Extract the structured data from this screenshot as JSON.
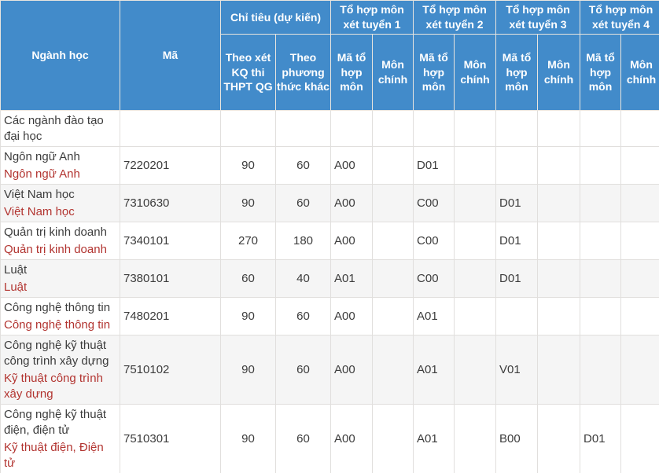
{
  "colors": {
    "header_bg": "#428bca",
    "header_text": "#ffffff",
    "link": "#b23430",
    "text": "#3c3c3c",
    "stripe": "#f5f5f5"
  },
  "table": {
    "header": {
      "nganh_hoc": "Ngành học",
      "ma": "Mã",
      "chi_tieu": "Chỉ tiêu (dự kiến)",
      "chi_tieu_sub": [
        "Theo xét KQ thi THPT QG",
        "Theo phương thức khác"
      ],
      "to_hop_groups": [
        "Tổ hợp môn xét tuyển 1",
        "Tổ hợp môn xét tuyển 2",
        "Tổ hợp môn xét tuyển 3",
        "Tổ hợp môn xét tuyển 4"
      ],
      "to_hop_sub": [
        "Mã tổ hợp môn",
        "Môn chính"
      ]
    },
    "rows": [
      {
        "name": "Các ngành đào tạo đại học",
        "link": "",
        "code": "",
        "quota_thptqg": "",
        "quota_khac": "",
        "combos": [
          "",
          "",
          "",
          "",
          "",
          "",
          "",
          ""
        ]
      },
      {
        "name": "Ngôn ngữ Anh",
        "link": "Ngôn ngữ Anh",
        "code": "7220201",
        "quota_thptqg": "90",
        "quota_khac": "60",
        "combos": [
          "A00",
          "",
          "D01",
          "",
          "",
          "",
          "",
          ""
        ]
      },
      {
        "name": "Việt Nam học",
        "link": "Việt Nam học",
        "code": "7310630",
        "quota_thptqg": "90",
        "quota_khac": "60",
        "combos": [
          "A00",
          "",
          "C00",
          "",
          "D01",
          "",
          "",
          ""
        ]
      },
      {
        "name": "Quản trị kinh doanh",
        "link": "Quản trị kinh doanh",
        "code": "7340101",
        "quota_thptqg": "270",
        "quota_khac": "180",
        "combos": [
          "A00",
          "",
          "C00",
          "",
          "D01",
          "",
          "",
          ""
        ]
      },
      {
        "name": "Luật",
        "link": "Luật",
        "code": "7380101",
        "quota_thptqg": "60",
        "quota_khac": "40",
        "combos": [
          "A01",
          "",
          "C00",
          "",
          "D01",
          "",
          "",
          ""
        ]
      },
      {
        "name": "Công nghệ thông tin",
        "link": "Công nghệ thông tin",
        "code": "7480201",
        "quota_thptqg": "90",
        "quota_khac": "60",
        "combos": [
          "A00",
          "",
          "A01",
          "",
          "",
          "",
          "",
          ""
        ]
      },
      {
        "name": "Công nghệ kỹ thuật công trình xây dựng",
        "link": "Kỹ thuật công trình xây dựng",
        "code": "7510102",
        "quota_thptqg": "90",
        "quota_khac": "60",
        "combos": [
          "A00",
          "",
          "A01",
          "",
          "V01",
          "",
          "",
          ""
        ]
      },
      {
        "name": "Công nghệ kỹ thuật điện, điện tử",
        "link": "Kỹ thuật điện, Điện tử",
        "code": "7510301",
        "quota_thptqg": "90",
        "quota_khac": "60",
        "combos": [
          "A00",
          "",
          "A01",
          "",
          "B00",
          "",
          "D01",
          ""
        ]
      },
      {
        "name": "",
        "link": "",
        "code": "",
        "quota_thptqg": "",
        "quota_khac": "",
        "combos": [
          "",
          "",
          "",
          "",
          "",
          "",
          "",
          ""
        ]
      }
    ]
  }
}
